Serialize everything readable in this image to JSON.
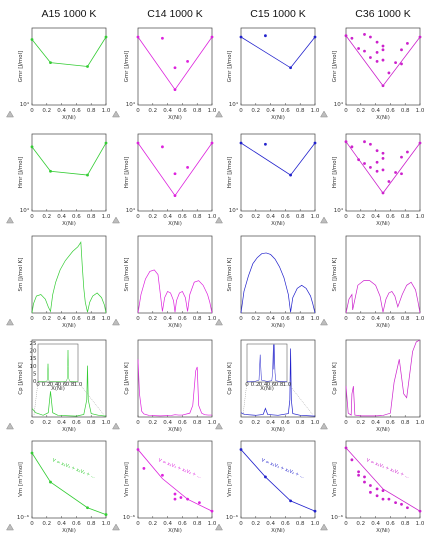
{
  "figure": {
    "columns": [
      {
        "title": "A15 1000 K",
        "color": "#33cc33"
      },
      {
        "title": "C14 1000 K",
        "color": "#dd22dd"
      },
      {
        "title": "C15 1000 K",
        "color": "#2222cc"
      },
      {
        "title": "C36 1000 K",
        "color": "#cc22cc"
      }
    ],
    "row_ylabels": [
      "Gmr [J/mol]",
      "Hmr [J/mol]",
      "Sm [J/mol K]",
      "Cp [J/mol K]",
      "Vm [m³/mol]"
    ],
    "xlabel": "X(Ni)",
    "x_ticks": [
      "0",
      "0.2",
      "0.4",
      "0.6",
      "0.8",
      "1.0"
    ],
    "row_yexp": [
      "10⁴",
      "10⁴",
      "",
      "",
      "10⁻⁶"
    ],
    "inset_xlabel": "X(Ni)",
    "inset_yticks": [
      "0",
      "5",
      "10",
      "15",
      "20",
      "25"
    ],
    "inset_xticks": [
      "0",
      "0.2",
      "0.4",
      "0.6",
      "0.8",
      "1.0"
    ],
    "vegard_annotation": "V = x₁V₁ + x₂V₂ + ...",
    "corner_icon": "warning-triangle-icon"
  },
  "chart_data": [
    {
      "type": "scatter",
      "panel": "A15-Gmr",
      "xlim": [
        0,
        1
      ],
      "ylim": [
        -4,
        2
      ],
      "line_x": [
        0,
        0.25,
        0.75,
        1.0
      ],
      "line_y": [
        1.1,
        -0.7,
        -1.0,
        1.3
      ],
      "points_x": [
        0,
        0.25,
        0.75,
        1.0
      ],
      "points_y": [
        1.1,
        -0.7,
        -1.0,
        1.3
      ]
    },
    {
      "type": "scatter",
      "panel": "C14-Gmr",
      "xlim": [
        0,
        1
      ],
      "ylim": [
        -4,
        2
      ],
      "line_x": [
        0,
        0.5,
        1.0
      ],
      "line_y": [
        1.3,
        -2.8,
        1.3
      ],
      "points_x": [
        0,
        0.33,
        0.5,
        0.5,
        0.67,
        1.0
      ],
      "points_y": [
        1.3,
        1.2,
        -1.1,
        -2.8,
        -0.6,
        1.3
      ]
    },
    {
      "type": "scatter",
      "panel": "C15-Gmr",
      "xlim": [
        0,
        1
      ],
      "ylim": [
        -4,
        2
      ],
      "line_x": [
        0,
        0.67,
        1.0
      ],
      "line_y": [
        1.3,
        -1.1,
        1.3
      ],
      "points_x": [
        0,
        0.33,
        0.67,
        1.0
      ],
      "points_y": [
        1.3,
        1.4,
        -1.1,
        1.3
      ]
    },
    {
      "type": "scatter",
      "panel": "C36-Gmr",
      "xlim": [
        0,
        1
      ],
      "ylim": [
        -4,
        2
      ],
      "line_x": [
        0,
        0.5,
        1.0
      ],
      "line_y": [
        1.4,
        -2.5,
        1.3
      ],
      "points_x": [
        0,
        0.08,
        0.17,
        0.25,
        0.25,
        0.33,
        0.33,
        0.42,
        0.42,
        0.42,
        0.5,
        0.5,
        0.5,
        0.5,
        0.58,
        0.67,
        0.75,
        0.75,
        0.83,
        1.0
      ],
      "points_y": [
        1.4,
        1.2,
        0.4,
        1.5,
        0.2,
        1.3,
        -0.3,
        0.9,
        0.1,
        -0.6,
        0.6,
        0.3,
        -0.5,
        -2.5,
        -1.5,
        -0.7,
        0.3,
        -0.8,
        0.8,
        1.3
      ]
    },
    {
      "type": "scatter",
      "panel": "A15-Hmr",
      "xlim": [
        0,
        1
      ],
      "ylim": [
        -4,
        2
      ],
      "line_x": [
        0,
        0.25,
        0.75,
        1.0
      ],
      "line_y": [
        1.0,
        -0.9,
        -1.2,
        1.3
      ],
      "points_x": [
        0,
        0.25,
        0.75,
        1.0
      ],
      "points_y": [
        1.0,
        -0.9,
        -1.2,
        1.3
      ]
    },
    {
      "type": "scatter",
      "panel": "C14-Hmr",
      "xlim": [
        0,
        1
      ],
      "ylim": [
        -4,
        2
      ],
      "line_x": [
        0,
        0.5,
        1.0
      ],
      "line_y": [
        1.3,
        -2.8,
        1.3
      ],
      "points_x": [
        0,
        0.33,
        0.5,
        0.5,
        0.67,
        1.0
      ],
      "points_y": [
        1.3,
        1.0,
        -1.1,
        -2.8,
        -0.6,
        1.3
      ]
    },
    {
      "type": "scatter",
      "panel": "C15-Hmr",
      "xlim": [
        0,
        1
      ],
      "ylim": [
        -4,
        2
      ],
      "line_x": [
        0,
        0.67,
        1.0
      ],
      "line_y": [
        1.3,
        -1.2,
        1.3
      ],
      "points_x": [
        0,
        0.33,
        0.67,
        1.0
      ],
      "points_y": [
        1.3,
        1.2,
        -1.2,
        1.3
      ]
    },
    {
      "type": "scatter",
      "panel": "C36-Hmr",
      "xlim": [
        0,
        1
      ],
      "ylim": [
        -4,
        2
      ],
      "line_x": [
        0,
        0.5,
        1.0
      ],
      "line_y": [
        1.4,
        -2.6,
        1.3
      ],
      "points_x": [
        0,
        0.08,
        0.17,
        0.25,
        0.25,
        0.33,
        0.33,
        0.42,
        0.42,
        0.42,
        0.5,
        0.5,
        0.5,
        0.5,
        0.58,
        0.67,
        0.75,
        0.75,
        0.83,
        1.0
      ],
      "points_y": [
        1.4,
        1.0,
        0.0,
        1.4,
        -0.3,
        1.2,
        -0.6,
        0.7,
        -0.2,
        -0.9,
        0.5,
        0.1,
        -0.8,
        -2.6,
        -1.7,
        -1.0,
        0.2,
        -1.1,
        0.6,
        1.3
      ]
    },
    {
      "type": "line",
      "panel": "A15-Sm",
      "xlim": [
        0,
        1
      ],
      "ylim": [
        0,
        5
      ],
      "x": [
        0,
        0.02,
        0.06,
        0.12,
        0.18,
        0.22,
        0.25,
        0.28,
        0.32,
        0.38,
        0.45,
        0.55,
        0.62,
        0.66,
        0.68,
        0.7,
        0.72,
        0.75,
        0.78,
        0.82,
        0.88,
        0.94,
        0.98,
        1.0
      ],
      "y": [
        0,
        0.6,
        1.1,
        1.2,
        0.9,
        0.4,
        0.1,
        1.2,
        2.0,
        2.8,
        3.4,
        4.0,
        4.3,
        4.6,
        3.0,
        1.6,
        0.7,
        0.05,
        0.7,
        1.1,
        1.3,
        1.0,
        0.5,
        0
      ]
    },
    {
      "type": "line",
      "panel": "C14-Sm",
      "xlim": [
        0,
        1
      ],
      "ylim": [
        0,
        5
      ],
      "x": [
        0,
        0.04,
        0.1,
        0.16,
        0.22,
        0.27,
        0.33,
        0.36,
        0.4,
        0.44,
        0.48,
        0.5,
        0.52,
        0.56,
        0.6,
        0.64,
        0.67,
        0.7,
        0.76,
        0.82,
        0.88,
        0.94,
        0.97,
        1.0
      ],
      "y": [
        0,
        1.2,
        2.2,
        2.7,
        2.8,
        2.5,
        0.1,
        1.0,
        1.4,
        1.3,
        0.8,
        0.05,
        0.8,
        1.3,
        1.4,
        1.0,
        0.1,
        1.2,
        2.0,
        2.1,
        1.8,
        1.2,
        0.7,
        0
      ]
    },
    {
      "type": "line",
      "panel": "C15-Sm",
      "xlim": [
        0,
        1
      ],
      "ylim": [
        0,
        5
      ],
      "x": [
        0,
        0.04,
        0.1,
        0.16,
        0.22,
        0.28,
        0.34,
        0.4,
        0.46,
        0.52,
        0.58,
        0.64,
        0.67,
        0.7,
        0.76,
        0.82,
        0.88,
        0.94,
        0.97,
        1.0
      ],
      "y": [
        0,
        1.4,
        2.4,
        3.2,
        3.6,
        3.85,
        3.9,
        3.8,
        3.5,
        3.0,
        2.3,
        1.2,
        0.05,
        1.0,
        1.6,
        1.8,
        1.6,
        1.1,
        0.6,
        0
      ]
    },
    {
      "type": "line",
      "panel": "C36-Sm",
      "xlim": [
        0,
        1
      ],
      "ylim": [
        0,
        5
      ],
      "x": [
        0,
        0.04,
        0.08,
        0.09,
        0.16,
        0.24,
        0.32,
        0.4,
        0.46,
        0.5,
        0.54,
        0.58,
        0.62,
        0.66,
        0.7,
        0.76,
        0.82,
        0.88,
        0.94,
        0.97,
        1.0
      ],
      "y": [
        0,
        0.9,
        1.2,
        0.2,
        1.8,
        2.1,
        2.1,
        1.8,
        1.1,
        0.05,
        0.9,
        1.3,
        1.4,
        1.1,
        0.4,
        1.2,
        1.8,
        2.0,
        1.5,
        0.8,
        0
      ]
    },
    {
      "type": "line",
      "panel": "A15-Cp",
      "xlim": [
        0,
        1
      ],
      "ylim": [
        0,
        0.9
      ],
      "x": [
        0,
        0.05,
        0.15,
        0.22,
        0.25,
        0.28,
        0.35,
        0.6,
        0.7,
        0.74,
        0.75,
        0.76,
        0.8,
        0.9,
        1.0
      ],
      "y": [
        0.1,
        0.05,
        0.02,
        0.05,
        0.3,
        0.05,
        0.02,
        0.01,
        0.03,
        0.2,
        0.6,
        0.2,
        0.04,
        0.02,
        0.01
      ]
    },
    {
      "type": "line",
      "panel": "A15-Cp-inset",
      "xlim": [
        0,
        1
      ],
      "ylim": [
        0,
        25
      ],
      "x": [
        0,
        0.05,
        0.2,
        0.23,
        0.25,
        0.27,
        0.3,
        0.6,
        0.7,
        0.73,
        0.74,
        0.75,
        0.76,
        0.77,
        0.8,
        0.9,
        1.0
      ],
      "y": [
        0.4,
        0.3,
        0.3,
        1.0,
        12.0,
        1.0,
        0.3,
        0.2,
        0.4,
        2.0,
        10.0,
        21.0,
        10.0,
        2.0,
        0.4,
        0.3,
        0.2
      ]
    },
    {
      "type": "line",
      "panel": "C14-Cp",
      "xlim": [
        0,
        1
      ],
      "ylim": [
        0,
        2
      ],
      "x": [
        0,
        0.02,
        0.05,
        0.08,
        0.15,
        0.3,
        0.45,
        0.5,
        0.55,
        0.6,
        0.7,
        0.74,
        0.78,
        0.8,
        0.82,
        0.86,
        0.9,
        0.95,
        1.0
      ],
      "y": [
        1.5,
        0.6,
        0.15,
        0.08,
        0.04,
        0.03,
        0.04,
        0.06,
        0.05,
        0.05,
        0.1,
        0.3,
        1.2,
        1.3,
        0.3,
        0.1,
        0.06,
        0.05,
        0.05
      ]
    },
    {
      "type": "line",
      "panel": "C15-Cp",
      "xlim": [
        0,
        1
      ],
      "ylim": [
        0,
        0.9
      ],
      "x": [
        0,
        0.05,
        0.2,
        0.3,
        0.33,
        0.36,
        0.5,
        0.64,
        0.66,
        0.67,
        0.68,
        0.7,
        0.8,
        1.0
      ],
      "y": [
        0.05,
        0.03,
        0.02,
        0.03,
        0.1,
        0.03,
        0.02,
        0.04,
        0.2,
        0.8,
        0.2,
        0.04,
        0.02,
        0.01
      ]
    },
    {
      "type": "line",
      "panel": "C15-Cp-inset",
      "xlim": [
        0,
        1
      ],
      "ylim": [
        0,
        6
      ],
      "x": [
        0,
        0.05,
        0.2,
        0.3,
        0.33,
        0.36,
        0.5,
        0.62,
        0.64,
        0.66,
        0.67,
        0.68,
        0.7,
        0.72,
        0.8,
        1.0
      ],
      "y": [
        0.1,
        0.05,
        0.1,
        0.3,
        4.3,
        0.3,
        0.1,
        0.2,
        1.5,
        5.9,
        2.0,
        5.9,
        1.5,
        0.2,
        0.1,
        0.05
      ]
    },
    {
      "type": "line",
      "panel": "C36-Cp",
      "xlim": [
        0,
        1
      ],
      "ylim": [
        0,
        2
      ],
      "x": [
        0,
        0.03,
        0.07,
        0.08,
        0.1,
        0.12,
        0.2,
        0.4,
        0.5,
        0.6,
        0.65,
        0.72,
        0.78,
        0.82,
        0.86,
        0.9,
        0.95,
        1.0
      ],
      "y": [
        0.8,
        0.1,
        0.05,
        0.6,
        0.8,
        0.05,
        0.03,
        0.03,
        0.04,
        0.1,
        0.9,
        1.5,
        0.6,
        0.5,
        1.1,
        1.7,
        1.95,
        2.0
      ]
    },
    {
      "type": "scatter",
      "panel": "A15-Vm",
      "xlim": [
        0,
        1
      ],
      "ylim": [
        6.5,
        11
      ],
      "line_x": [
        0,
        0.25,
        0.75,
        1.0
      ],
      "line_y": [
        10.3,
        8.6,
        7.1,
        6.7
      ],
      "points_x": [
        0,
        0.25,
        0.75,
        1.0
      ],
      "points_y": [
        10.3,
        8.6,
        7.1,
        6.7
      ]
    },
    {
      "type": "scatter",
      "panel": "C14-Vm",
      "xlim": [
        0,
        1
      ],
      "ylim": [
        6.5,
        11
      ],
      "line_x": [
        0,
        0.33,
        0.67,
        1.0
      ],
      "line_y": [
        10.5,
        8.8,
        7.6,
        6.9
      ],
      "points_x": [
        0,
        0.08,
        0.33,
        0.5,
        0.5,
        0.58,
        0.67,
        0.83,
        1.0
      ],
      "points_y": [
        10.5,
        9.4,
        9.0,
        7.9,
        7.6,
        7.7,
        7.6,
        7.4,
        6.9
      ]
    },
    {
      "type": "scatter",
      "panel": "C15-Vm",
      "xlim": [
        0,
        1
      ],
      "ylim": [
        6.5,
        11
      ],
      "line_x": [
        0,
        0.33,
        0.67,
        1.0
      ],
      "line_y": [
        10.5,
        8.9,
        7.5,
        6.9
      ],
      "points_x": [
        0,
        0.33,
        0.67,
        1.0
      ],
      "points_y": [
        10.5,
        8.9,
        7.5,
        6.9
      ]
    },
    {
      "type": "scatter",
      "panel": "C36-Vm",
      "xlim": [
        0,
        1
      ],
      "ylim": [
        6.5,
        11
      ],
      "line_x": [
        0,
        0.5,
        1.0
      ],
      "line_y": [
        10.6,
        8.2,
        6.9
      ],
      "points_x": [
        0,
        0.08,
        0.17,
        0.17,
        0.25,
        0.25,
        0.33,
        0.33,
        0.42,
        0.42,
        0.5,
        0.5,
        0.58,
        0.67,
        0.75,
        0.83,
        1.0
      ],
      "points_y": [
        10.6,
        9.9,
        9.2,
        9.0,
        8.9,
        8.6,
        8.4,
        8.0,
        8.2,
        7.8,
        8.1,
        7.6,
        7.6,
        7.4,
        7.3,
        7.1,
        6.9
      ]
    }
  ]
}
